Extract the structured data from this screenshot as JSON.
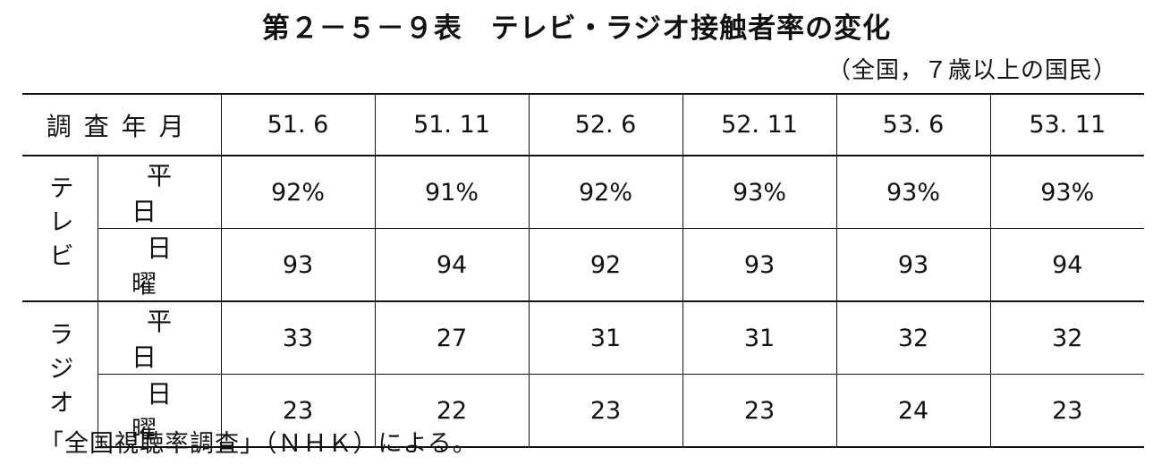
{
  "title": "第２－５－９表　テレビ・ラジオ接触者率の変化",
  "subtitle": "（全国，７歳以上の国民）",
  "table": {
    "header_label": "調査年月",
    "columns": [
      "51. 6",
      "51. 11",
      "52. 6",
      "52. 11",
      "53. 6",
      "53. 11"
    ],
    "groups": [
      {
        "label": "テレビ",
        "rows": [
          {
            "label": "平日",
            "values": [
              "92%",
              "91%",
              "92%",
              "93%",
              "93%",
              "93%"
            ]
          },
          {
            "label": "日曜",
            "values": [
              "93",
              "94",
              "92",
              "93",
              "93",
              "94"
            ]
          }
        ]
      },
      {
        "label": "ラジオ",
        "rows": [
          {
            "label": "平日",
            "values": [
              "33",
              "27",
              "31",
              "31",
              "32",
              "32"
            ]
          },
          {
            "label": "日曜",
            "values": [
              "23",
              "22",
              "23",
              "23",
              "24",
              "23"
            ]
          }
        ]
      }
    ]
  },
  "footnote": "「全国視聴率調査」（ＮＨＫ）による。"
}
